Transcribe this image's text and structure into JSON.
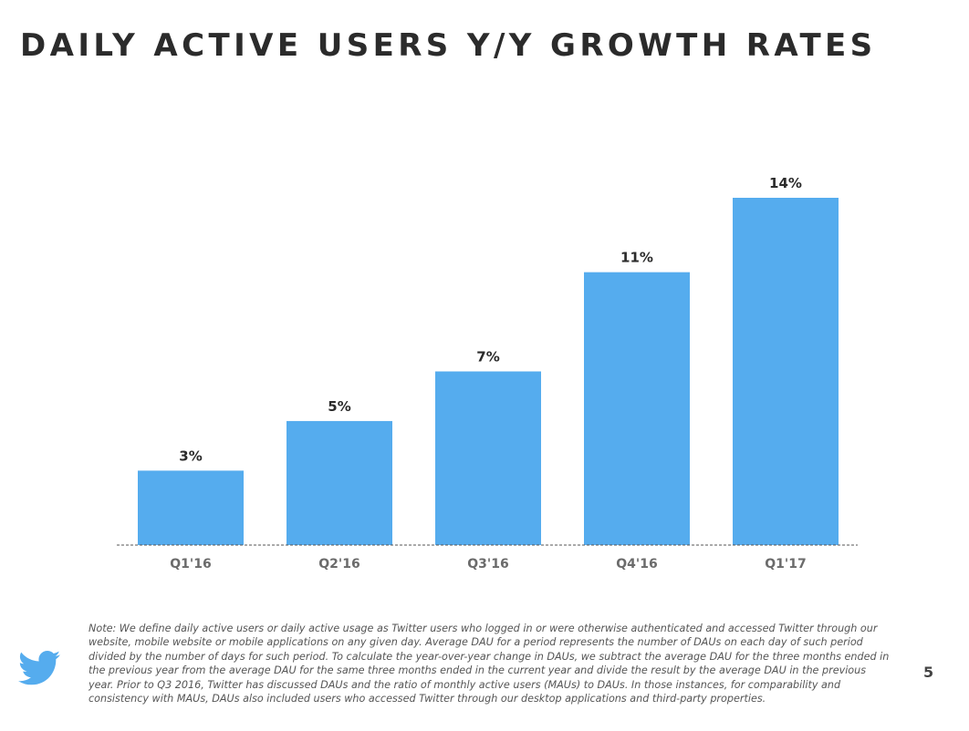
{
  "title": "DAILY ACTIVE USERS Y/Y GROWTH RATES",
  "chart_data": {
    "type": "bar",
    "categories": [
      "Q1'16",
      "Q2'16",
      "Q3'16",
      "Q4'16",
      "Q1'17"
    ],
    "values": [
      3,
      5,
      7,
      11,
      14
    ],
    "value_labels": [
      "3%",
      "5%",
      "7%",
      "11%",
      "14%"
    ],
    "unit": "%",
    "ylim": [
      0,
      14
    ],
    "grid": false,
    "legend": "none",
    "bar_color": "#55acee",
    "title": "",
    "xlabel": "",
    "ylabel": ""
  },
  "footer": {
    "note": "Note: We define daily active users or daily active usage as Twitter users who logged in or were otherwise authenticated and accessed Twitter through our website, mobile website or mobile applications on any given day. Average DAU for a period represents the number of DAUs on each day of such period divided by the number of days for such period. To calculate the year-over-year change in DAUs, we subtract the average DAU for the three months ended in the previous year from the average DAU for the same three months ended in the current year and divide the result by the average DAU in the previous year. Prior to Q3 2016, Twitter has discussed DAUs and the ratio of monthly active users (MAUs) to DAUs. In those instances, for comparability and consistency with MAUs, DAUs also included users who accessed Twitter through our desktop applications and third-party properties.",
    "logo_icon": "twitter-bird-icon",
    "logo_color": "#55acee",
    "page_number": "5"
  }
}
